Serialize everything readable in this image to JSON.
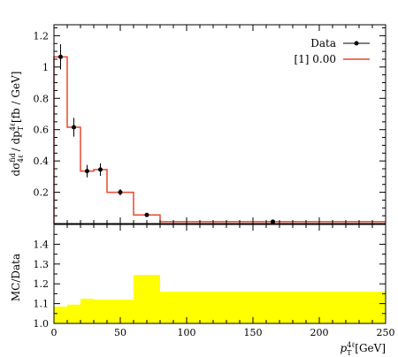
{
  "chart_data": [
    {
      "type": "line",
      "panel": "main",
      "ylabel": "dσ^fid_4ℓ / dp^4ℓ_T [fb / GeV]",
      "xlim": [
        0,
        250
      ],
      "ylim": [
        0,
        1.27
      ],
      "yticks": [
        0.2,
        0.4,
        0.6,
        0.8,
        1.0,
        1.2
      ],
      "ytick_labels": [
        "0.2",
        "0.4",
        "0.6",
        "0.8",
        "1",
        "1.2"
      ],
      "legend": {
        "position": "top-right",
        "entries": [
          "Data",
          "[1] 0.00"
        ]
      },
      "data_points": [
        {
          "x": 5,
          "y": 1.065,
          "yerr": 0.08
        },
        {
          "x": 15,
          "y": 0.615,
          "yerr": 0.06
        },
        {
          "x": 25,
          "y": 0.335,
          "yerr": 0.04
        },
        {
          "x": 35,
          "y": 0.345,
          "yerr": 0.04
        },
        {
          "x": 50,
          "y": 0.2,
          "yerr": 0.02
        },
        {
          "x": 70,
          "y": 0.055,
          "yerr": 0.006
        },
        {
          "x": 165,
          "y": 0.012,
          "yerr": 0.002
        }
      ],
      "prediction_bins": [
        {
          "lo": 0,
          "hi": 10,
          "y": 1.065
        },
        {
          "lo": 10,
          "hi": 20,
          "y": 0.615
        },
        {
          "lo": 20,
          "hi": 30,
          "y": 0.335
        },
        {
          "lo": 30,
          "hi": 40,
          "y": 0.345
        },
        {
          "lo": 40,
          "hi": 60,
          "y": 0.2
        },
        {
          "lo": 60,
          "hi": 80,
          "y": 0.055
        },
        {
          "lo": 80,
          "hi": 250,
          "y": 0.012
        }
      ]
    },
    {
      "type": "bar",
      "panel": "ratio",
      "ylabel": "MC/Data",
      "xlabel": "p^4ℓ_T [GeV]",
      "xlim": [
        0,
        250
      ],
      "ylim": [
        1.0,
        1.5
      ],
      "yticks": [
        1.0,
        1.1,
        1.2,
        1.3,
        1.4
      ],
      "ytick_labels": [
        "1.0",
        "1.1",
        "1.2",
        "1.3",
        "1.4"
      ],
      "xticks": [
        0,
        50,
        100,
        150,
        200,
        250
      ],
      "xtick_labels": [
        "0",
        "50",
        "100",
        "150",
        "200",
        "250"
      ],
      "band_bins": [
        {
          "lo": 0,
          "hi": 10,
          "y": 1.085
        },
        {
          "lo": 10,
          "hi": 20,
          "y": 1.095
        },
        {
          "lo": 20,
          "hi": 30,
          "y": 1.125
        },
        {
          "lo": 30,
          "hi": 40,
          "y": 1.12
        },
        {
          "lo": 40,
          "hi": 60,
          "y": 1.12
        },
        {
          "lo": 60,
          "hi": 80,
          "y": 1.245
        },
        {
          "lo": 80,
          "hi": 250,
          "y": 1.16
        }
      ]
    }
  ],
  "colors": {
    "prediction": "#e8472e",
    "band": "#ffff00",
    "data": "#000000"
  }
}
